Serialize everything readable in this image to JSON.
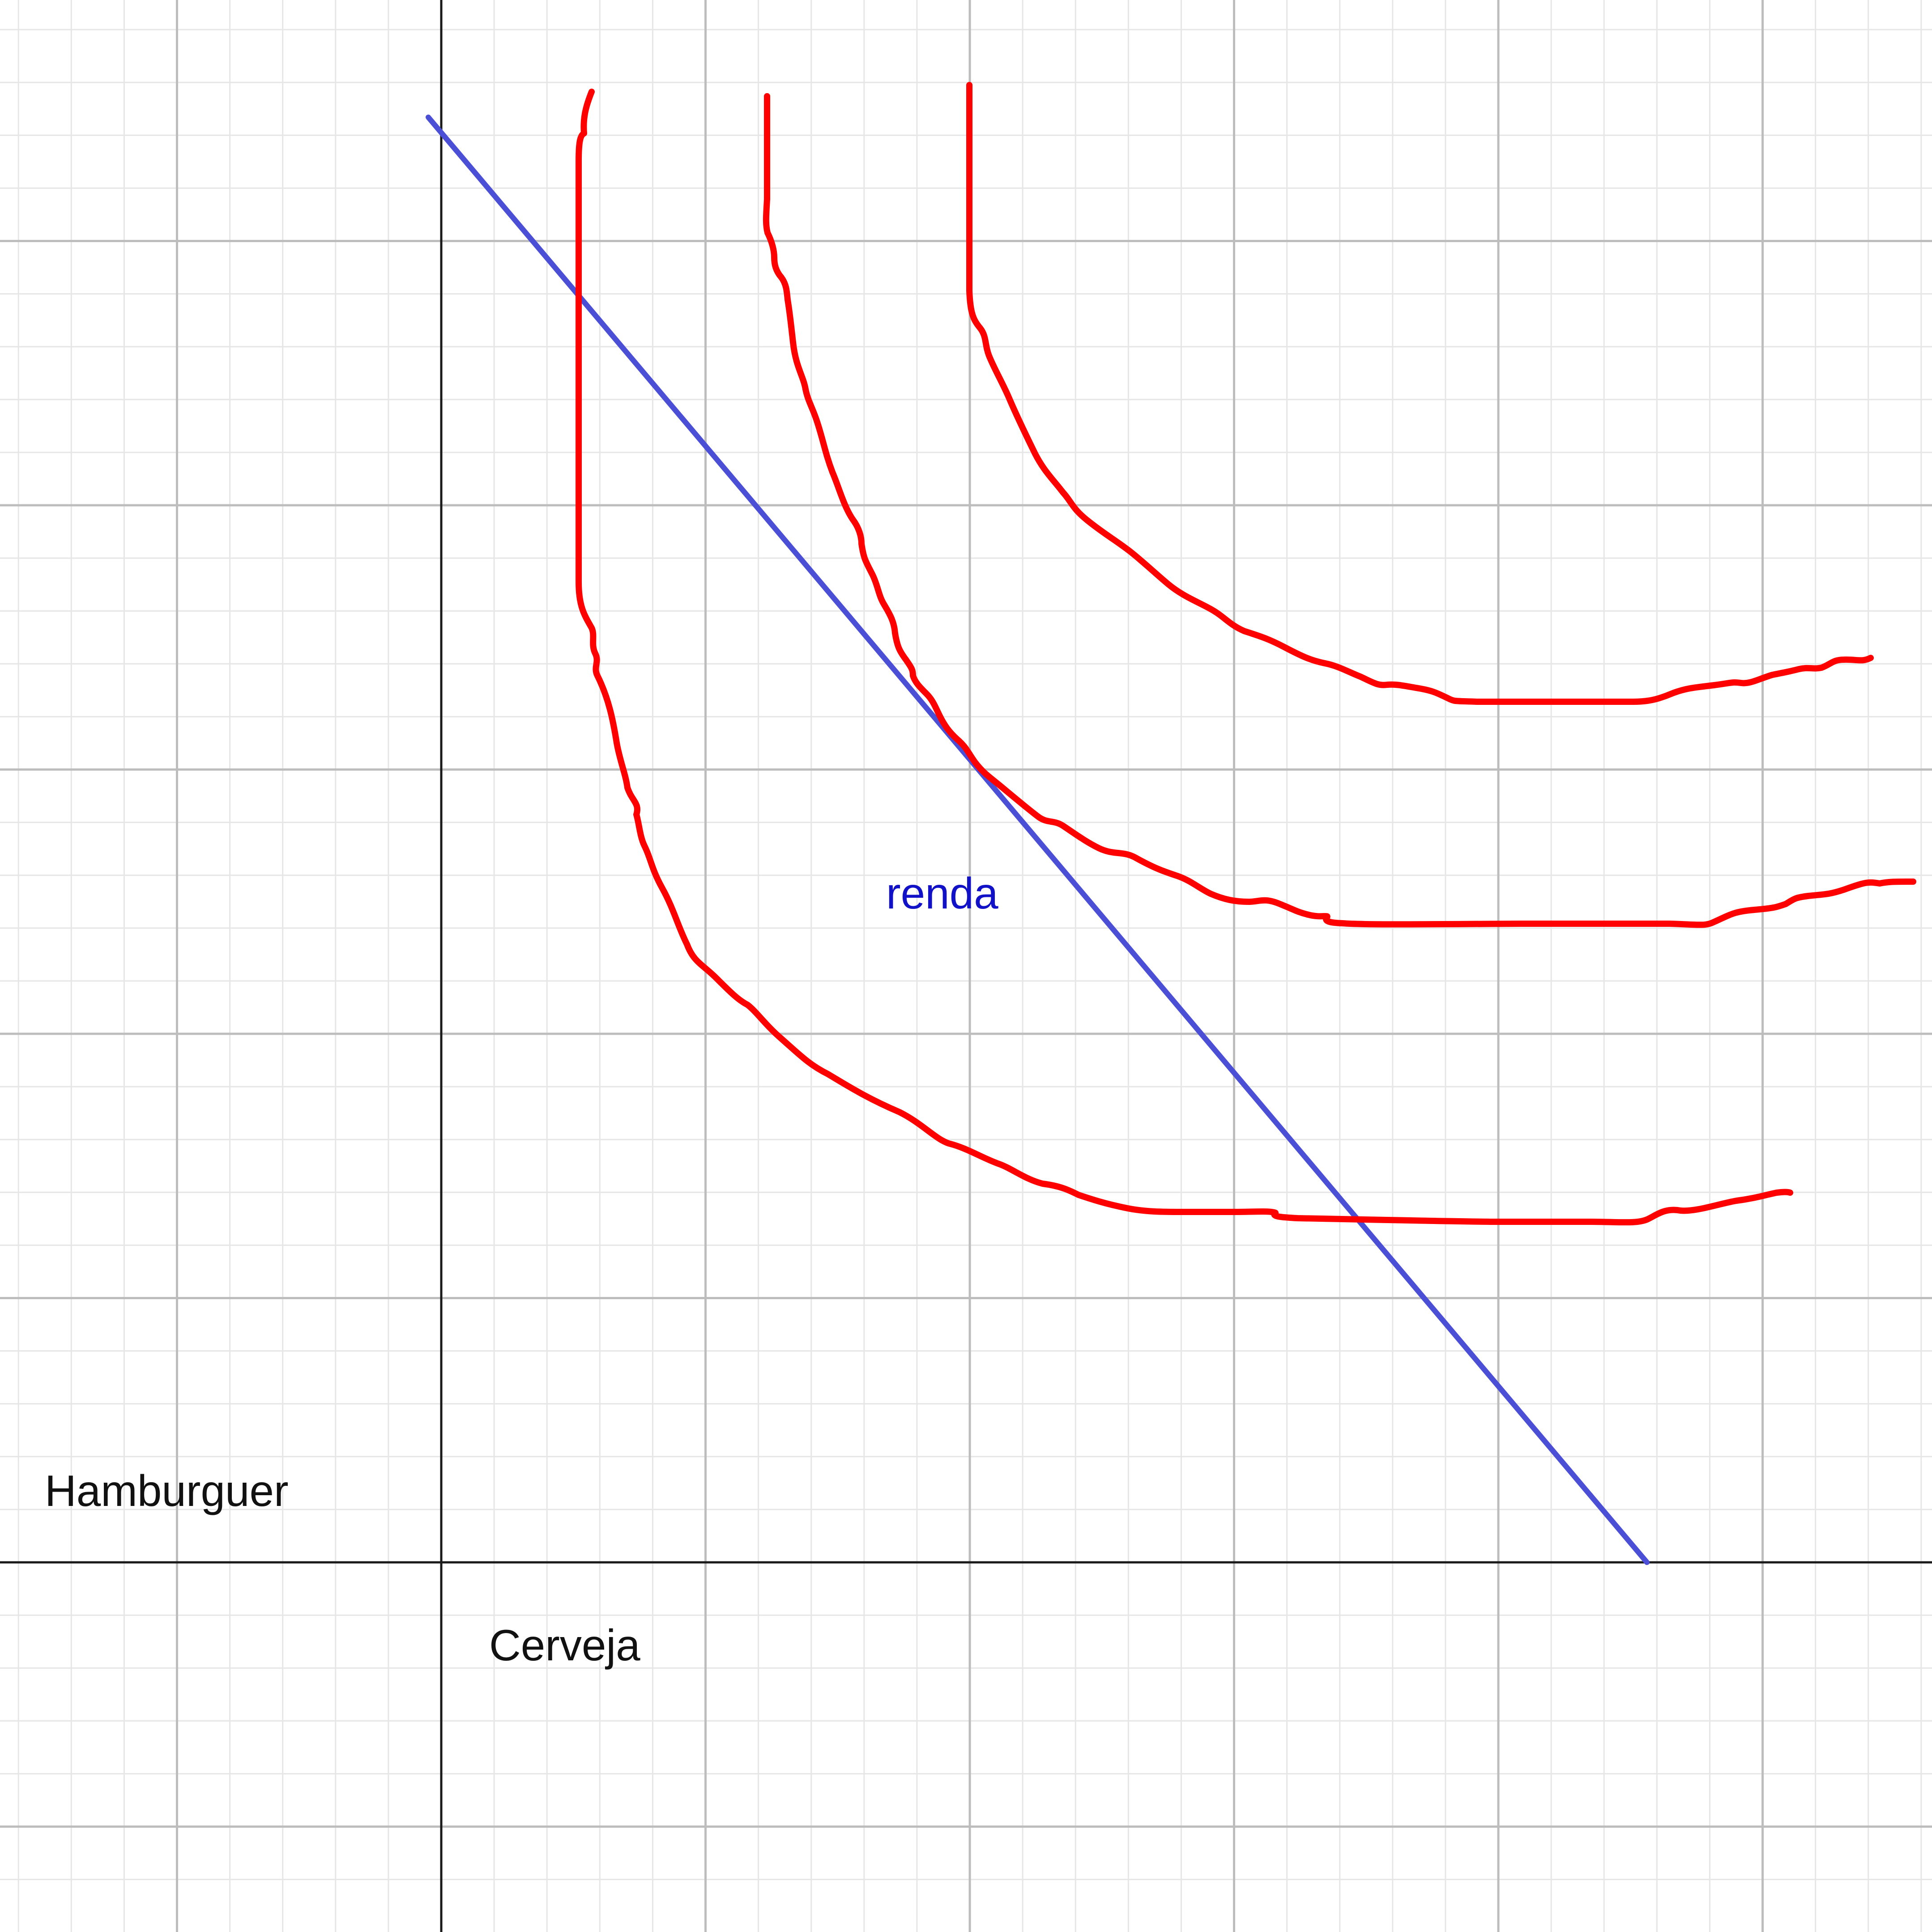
{
  "labels": {
    "y_axis": "Hamburguer",
    "x_axis": "Cerveja",
    "budget_line": "renda"
  },
  "colors": {
    "background": "#ffffff",
    "grid_minor": "#e6e6e6",
    "grid_major": "#bdbdbd",
    "axes": "#1a1a1a",
    "budget_line": "#4a4fd6",
    "indifference_curves": "#ff0000",
    "label_text": "#111111",
    "budget_label": "#1111c8"
  }
}
